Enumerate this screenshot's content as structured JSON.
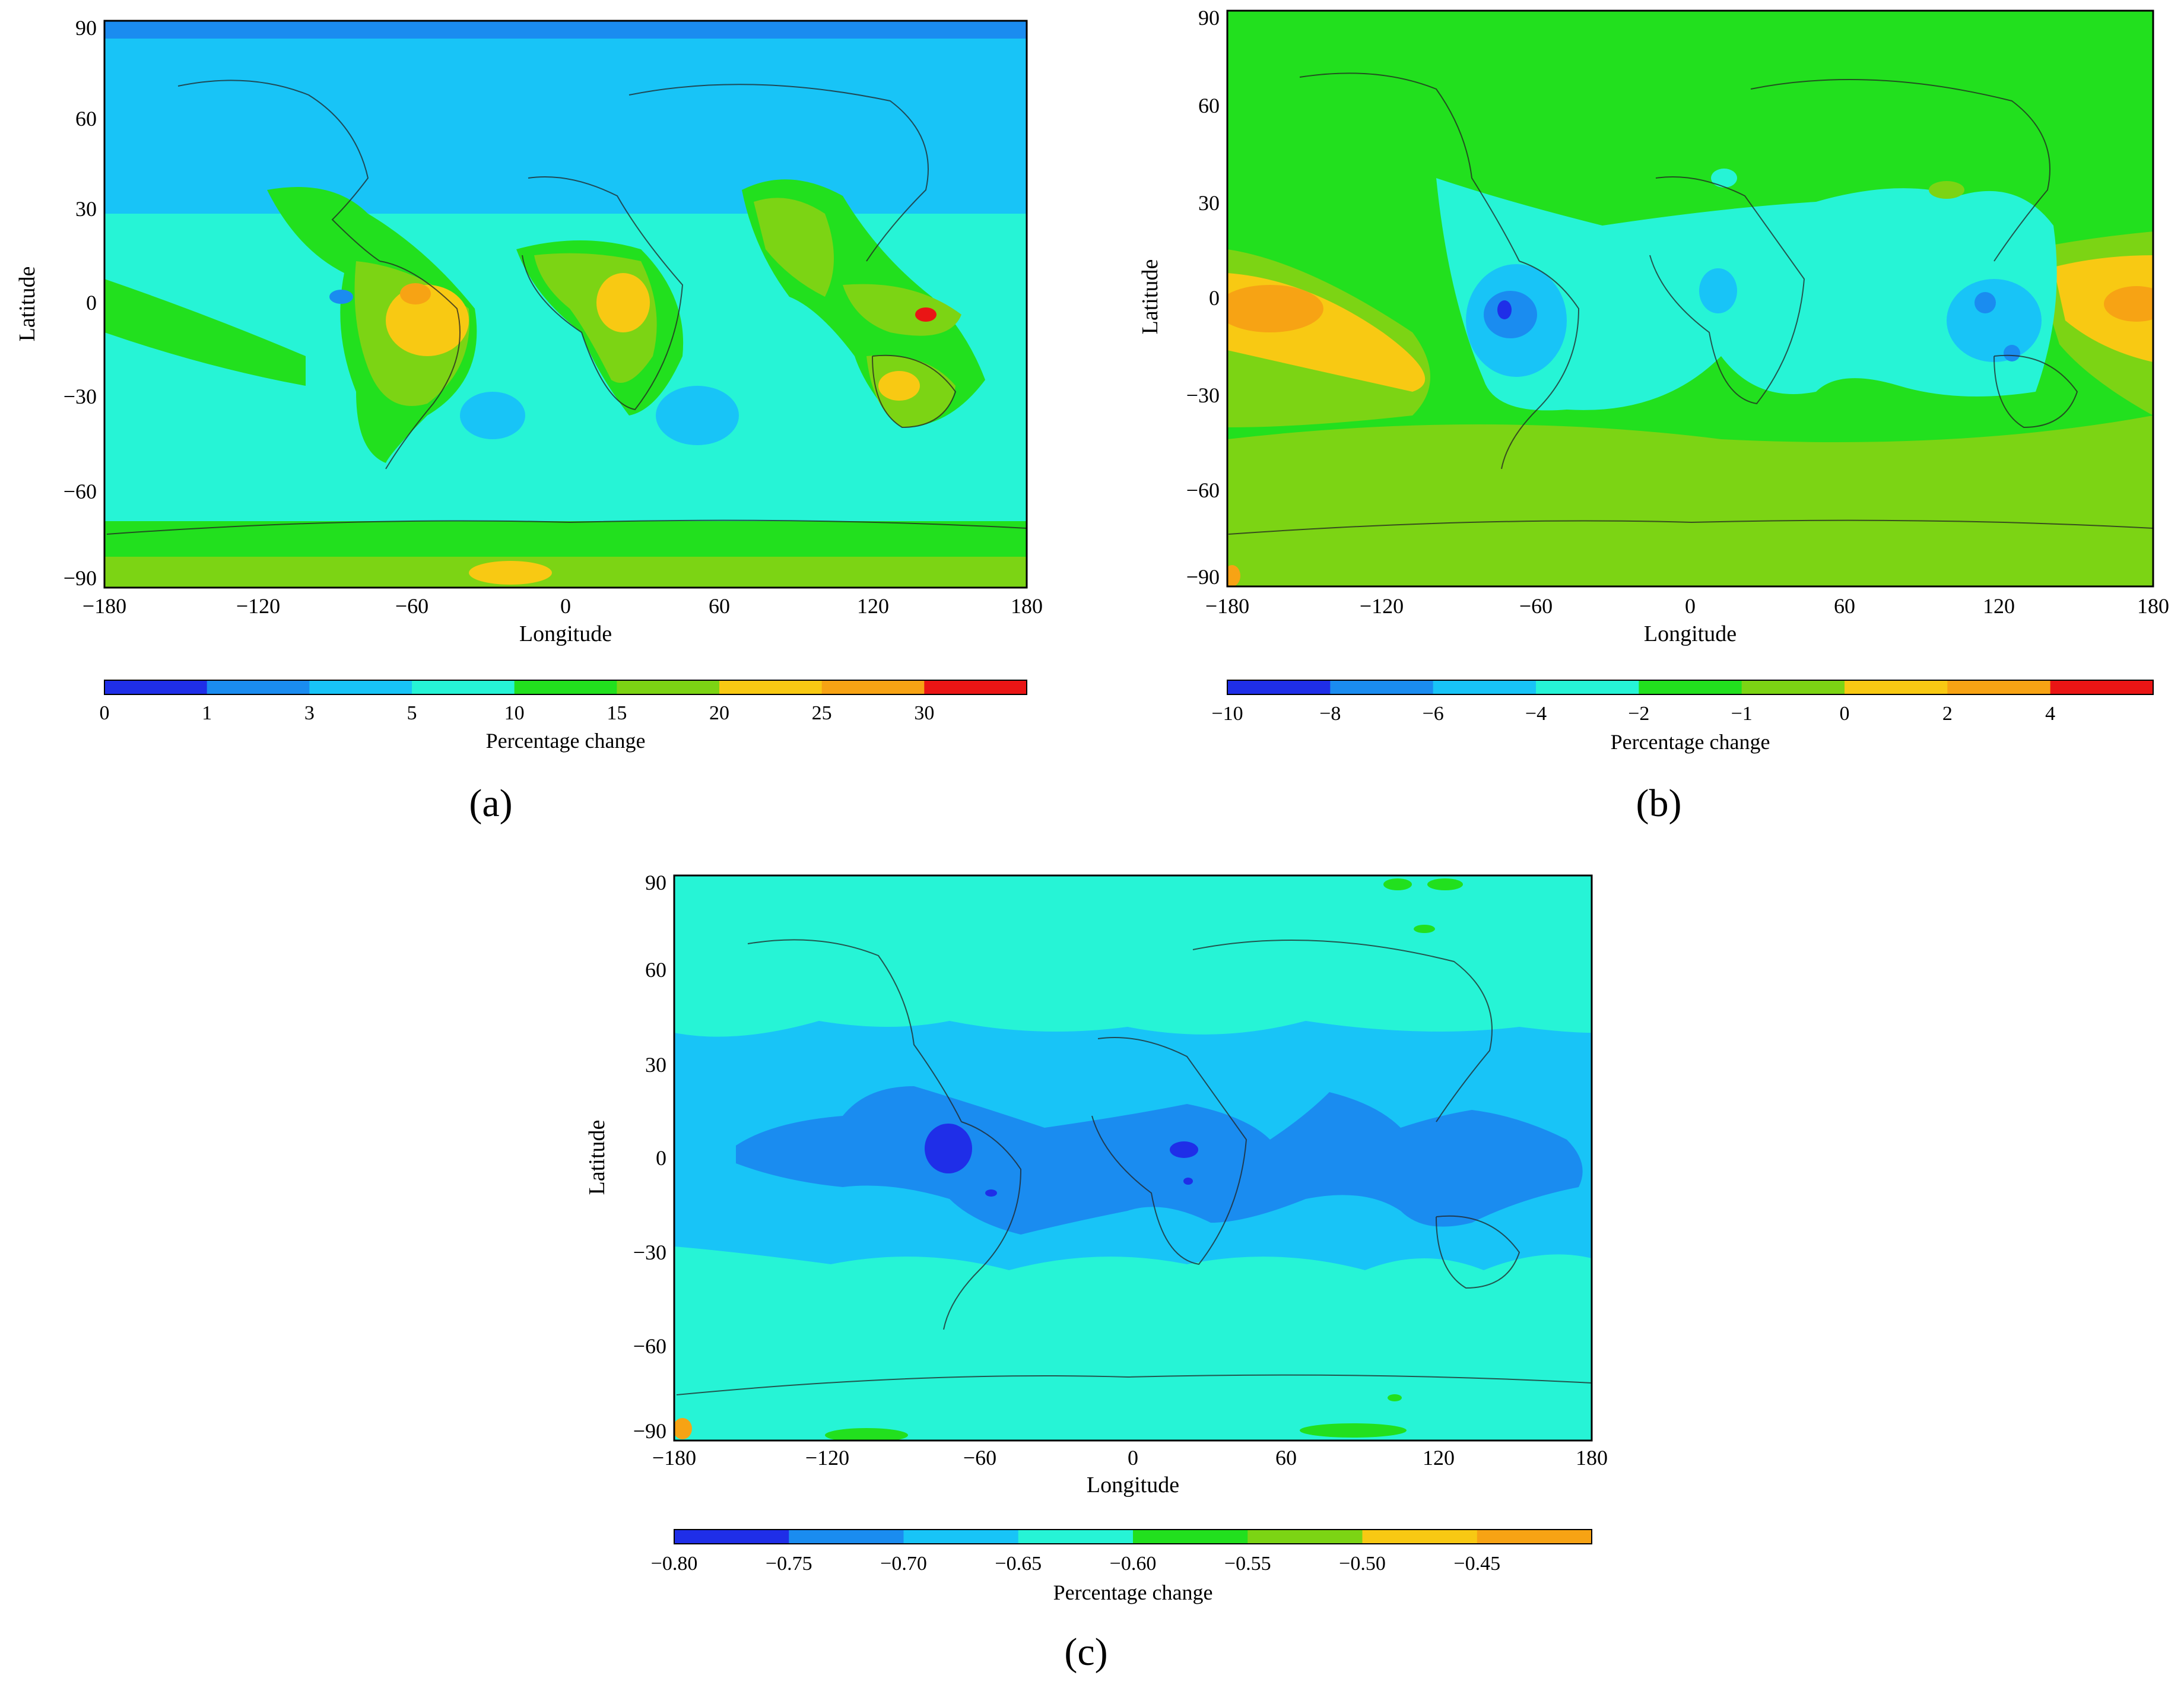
{
  "panels": [
    {
      "id": "a",
      "label": "(a)",
      "xlabel": "Longitude",
      "ylabel": "Latitude",
      "xticks": [
        "−180",
        "−120",
        "−60",
        "0",
        "60",
        "120",
        "180"
      ],
      "yticks": [
        "90",
        "60",
        "30",
        "0",
        "−30",
        "−60",
        "−90"
      ],
      "colorbar": {
        "title": "Percentage change",
        "ticks": [
          "0",
          "1",
          "3",
          "5",
          "10",
          "15",
          "20",
          "25",
          "30"
        ],
        "colors": [
          "#1f2ee8",
          "#1a8cf0",
          "#18c4f7",
          "#26f4d6",
          "#22e01e",
          "#7cd414",
          "#f8c913",
          "#f7a314",
          "#ea1515"
        ]
      }
    },
    {
      "id": "b",
      "label": "(b)",
      "xlabel": "Longitude",
      "ylabel": "Latitude",
      "xticks": [
        "−180",
        "−120",
        "−60",
        "0",
        "60",
        "120",
        "180"
      ],
      "yticks": [
        "90",
        "60",
        "30",
        "0",
        "−30",
        "−60",
        "−90"
      ],
      "colorbar": {
        "title": "Percentage change",
        "ticks": [
          "−10",
          "−8",
          "−6",
          "−4",
          "−2",
          "−1",
          "0",
          "2",
          "4"
        ],
        "colors": [
          "#1f2ee8",
          "#1a8cf0",
          "#18c4f7",
          "#26f4d6",
          "#22e01e",
          "#7cd414",
          "#f8c913",
          "#f7a314",
          "#ea1515"
        ]
      }
    },
    {
      "id": "c",
      "label": "(c)",
      "xlabel": "Longitude",
      "ylabel": "Latitude",
      "xticks": [
        "−180",
        "−120",
        "−60",
        "0",
        "60",
        "120",
        "180"
      ],
      "yticks": [
        "90",
        "60",
        "30",
        "0",
        "−30",
        "−60",
        "−90"
      ],
      "colorbar": {
        "title": "Percentage change",
        "ticks": [
          "−0.80",
          "−0.75",
          "−0.70",
          "−0.65",
          "−0.60",
          "−0.55",
          "−0.50",
          "−0.45"
        ],
        "colors": [
          "#1f2ee8",
          "#1a8cf0",
          "#18c4f7",
          "#26f4d6",
          "#22e01e",
          "#7cd414",
          "#f8c913",
          "#f7a314"
        ]
      }
    }
  ]
}
